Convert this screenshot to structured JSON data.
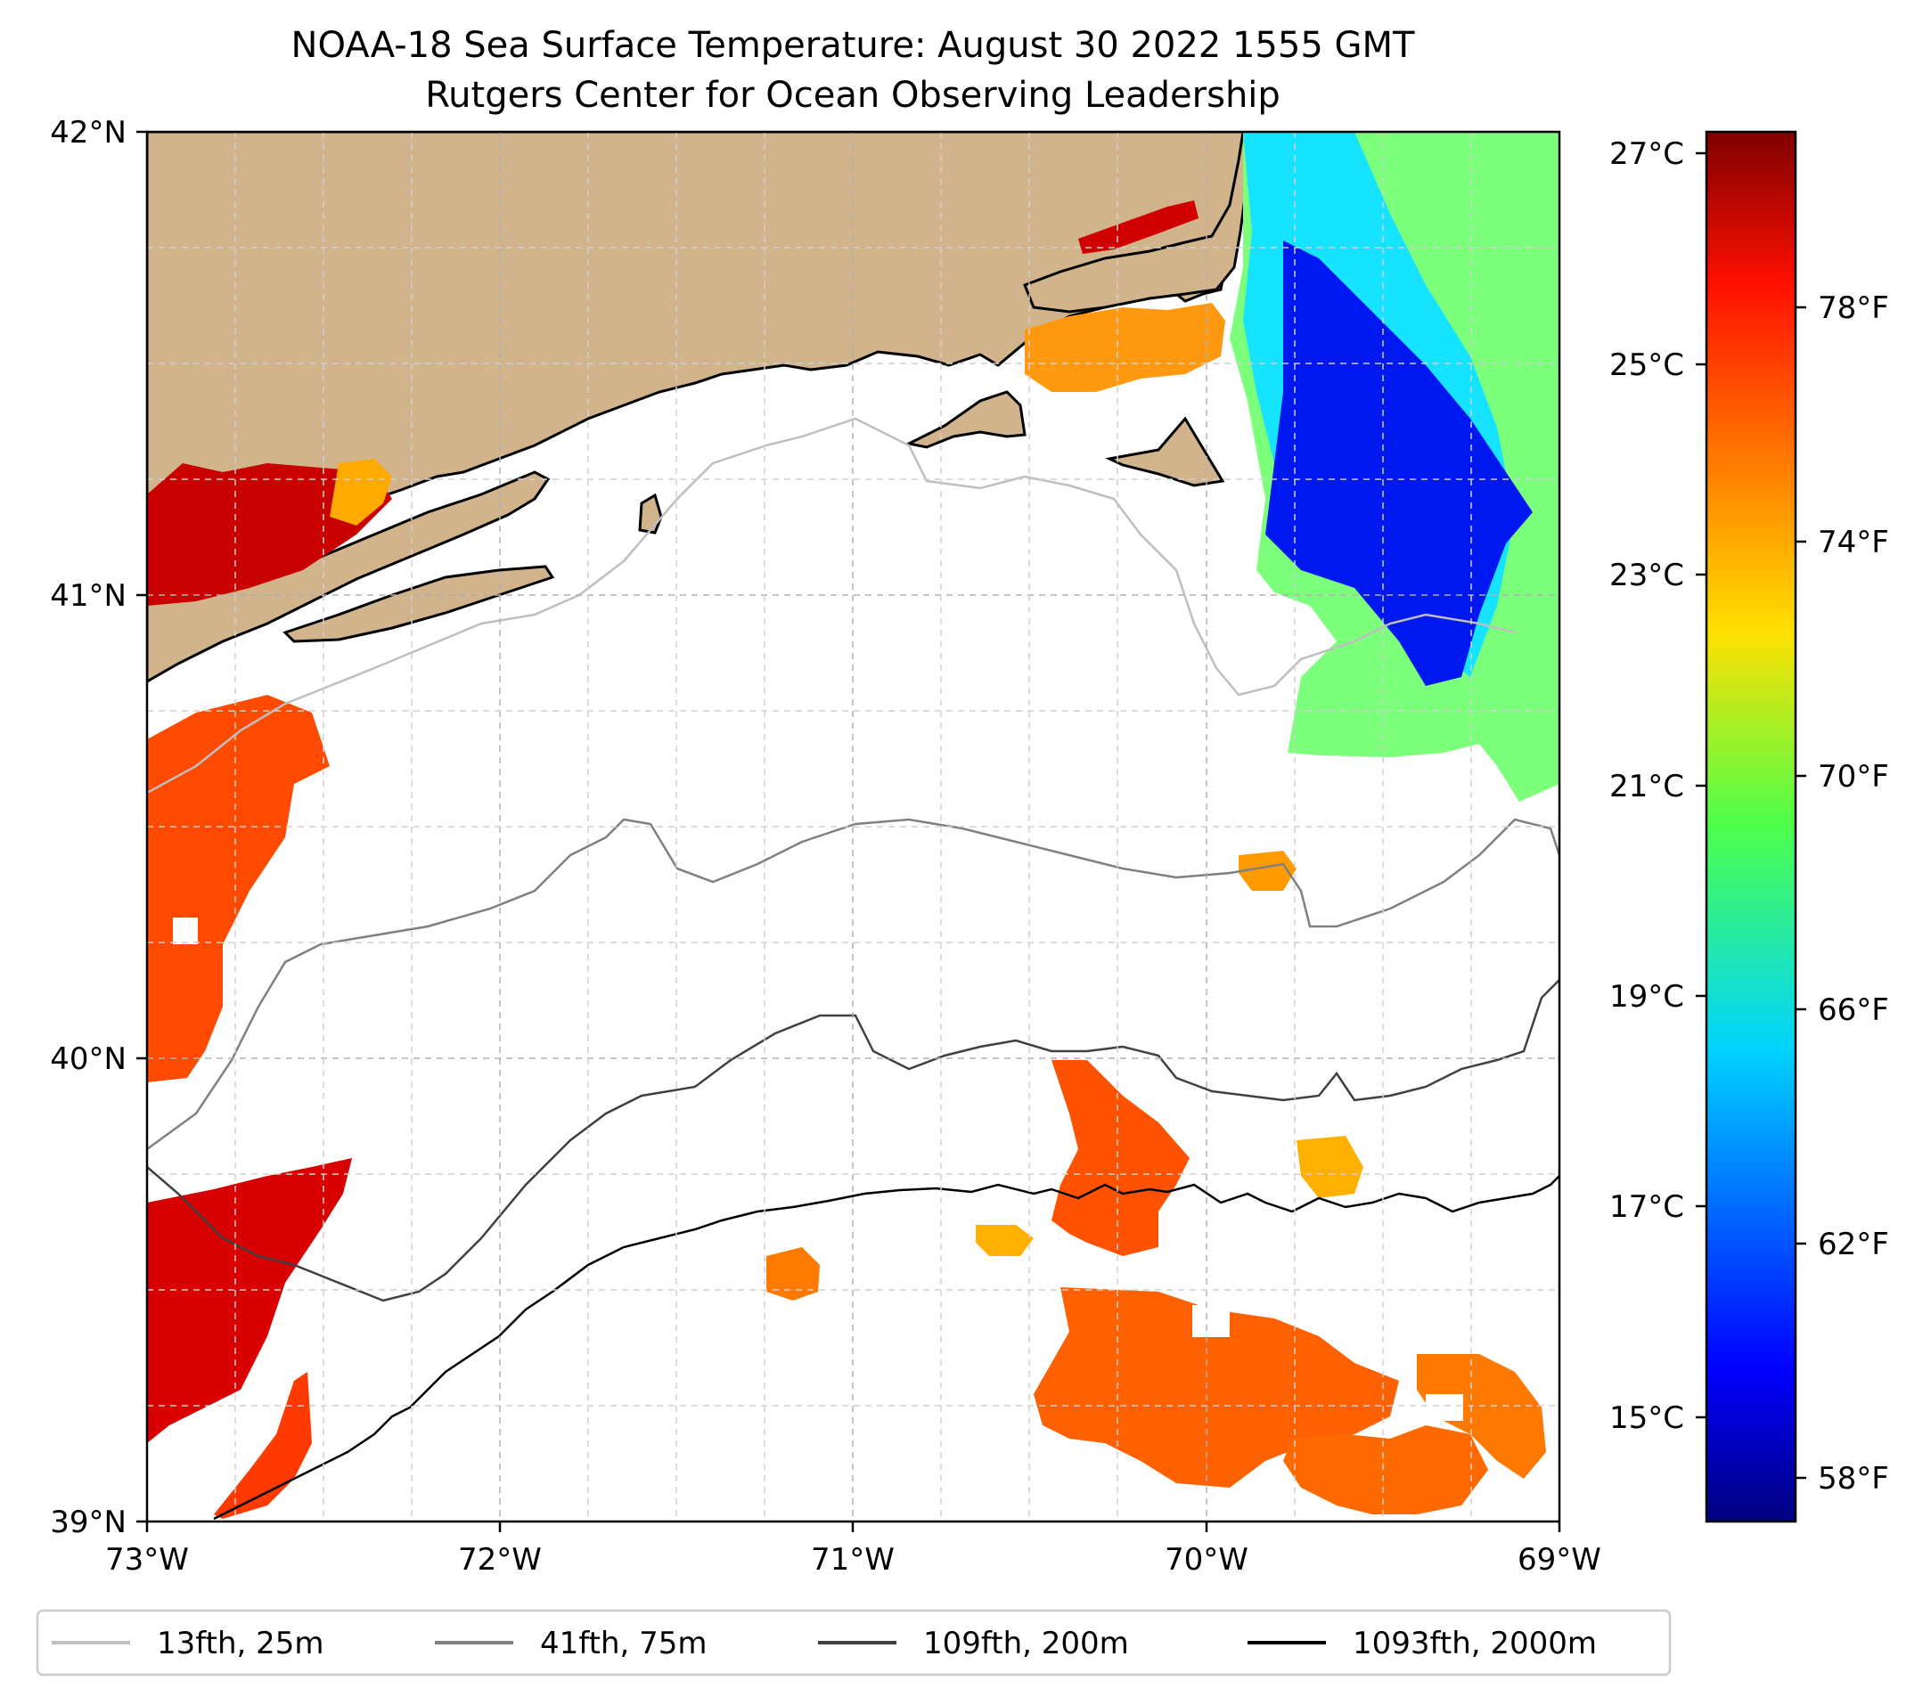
{
  "title": {
    "line1": "NOAA-18 Sea Surface Temperature: August 30 2022 1555 GMT",
    "line2": "Rutgers Center for Ocean Observing Leadership"
  },
  "map": {
    "lon_range": [
      -73,
      -69
    ],
    "lat_range": [
      39,
      42
    ],
    "x_ticks": [
      {
        "lon": -73,
        "label": "73°W"
      },
      {
        "lon": -72,
        "label": "72°W"
      },
      {
        "lon": -71,
        "label": "71°W"
      },
      {
        "lon": -70,
        "label": "70°W"
      },
      {
        "lon": -69,
        "label": "69°W"
      }
    ],
    "y_ticks": [
      {
        "lat": 42,
        "label": "42°N"
      },
      {
        "lat": 41,
        "label": "41°N"
      },
      {
        "lat": 40,
        "label": "40°N"
      },
      {
        "lat": 39,
        "label": "39°N"
      }
    ],
    "land_color": "#d2b48c",
    "grid": "dashed"
  },
  "colorbar": {
    "colormap": "jet",
    "range_c": [
      14.0,
      27.2
    ],
    "celsius_ticks": [
      {
        "value": 27,
        "label": "27°C"
      },
      {
        "value": 25,
        "label": "25°C"
      },
      {
        "value": 23,
        "label": "23°C"
      },
      {
        "value": 21,
        "label": "21°C"
      },
      {
        "value": 19,
        "label": "19°C"
      },
      {
        "value": 17,
        "label": "17°C"
      },
      {
        "value": 15,
        "label": "15°C"
      }
    ],
    "fahrenheit_ticks": [
      {
        "value": 78,
        "label": "78°F"
      },
      {
        "value": 74,
        "label": "74°F"
      },
      {
        "value": 70,
        "label": "70°F"
      },
      {
        "value": 66,
        "label": "66°F"
      },
      {
        "value": 62,
        "label": "62°F"
      },
      {
        "value": 58,
        "label": "58°F"
      }
    ]
  },
  "legend": {
    "placement": "bottom",
    "items": [
      {
        "label": "13fth, 25m",
        "color": "#bfbfbf"
      },
      {
        "label": "41fth, 75m",
        "color": "#808080"
      },
      {
        "label": "109fth, 200m",
        "color": "#404040"
      },
      {
        "label": "1093fth, 2000m",
        "color": "#000000"
      }
    ]
  }
}
